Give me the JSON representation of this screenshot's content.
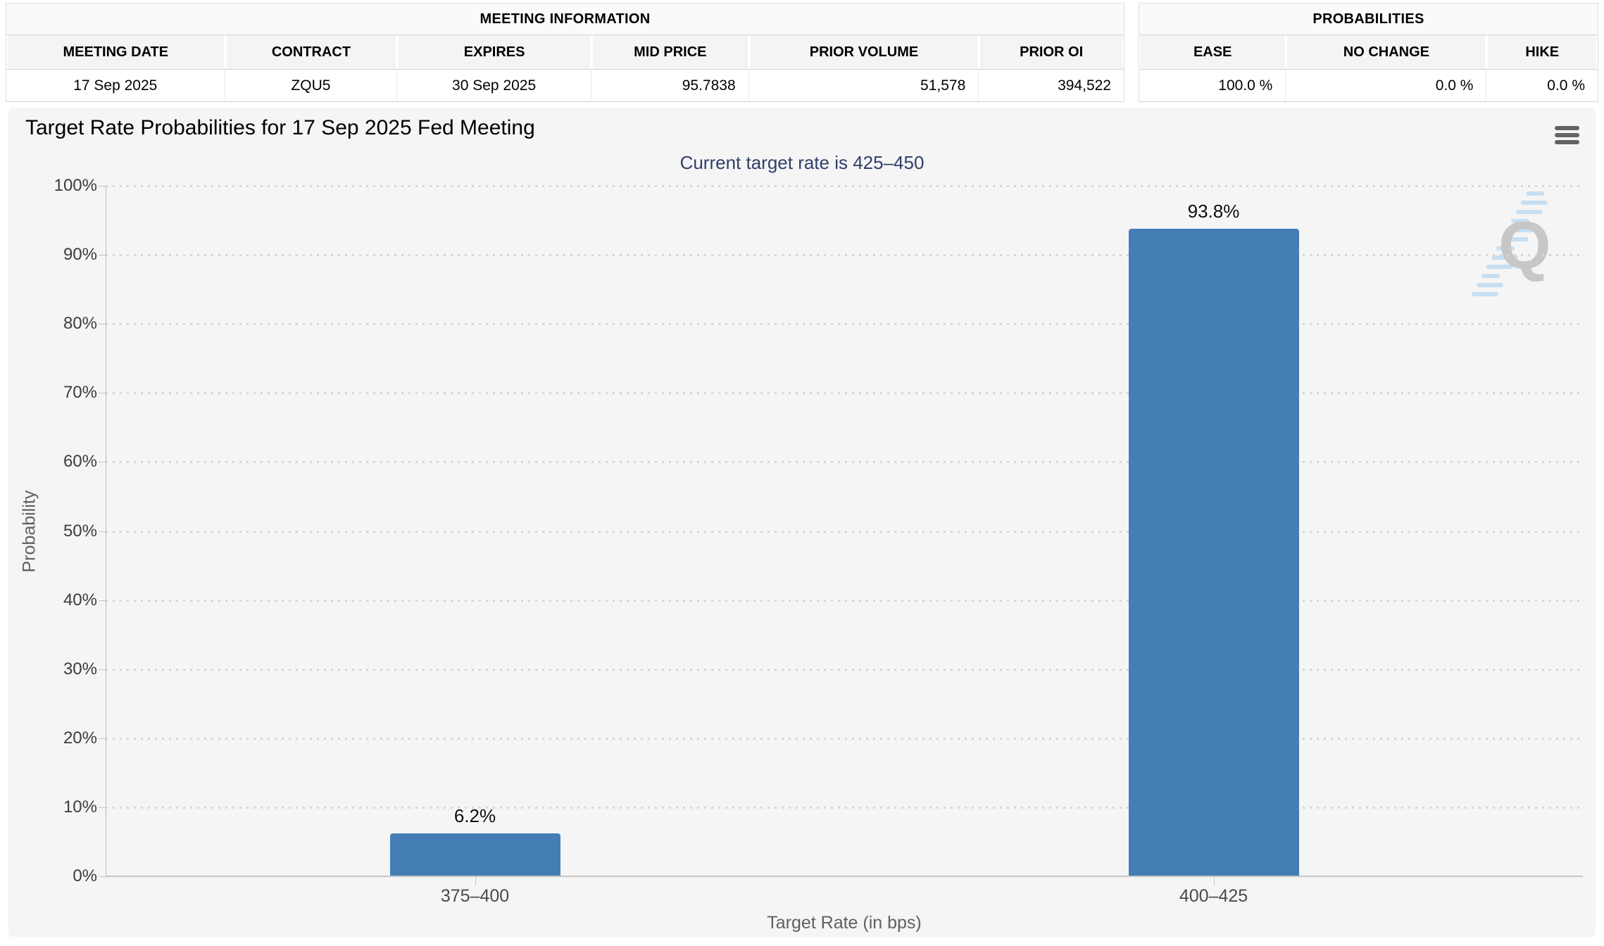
{
  "meeting_info": {
    "title": "MEETING INFORMATION",
    "columns": [
      "MEETING DATE",
      "CONTRACT",
      "EXPIRES",
      "MID PRICE",
      "PRIOR VOLUME",
      "PRIOR OI"
    ],
    "row": [
      "17 Sep 2025",
      "ZQU5",
      "30 Sep 2025",
      "95.7838",
      "51,578",
      "394,522"
    ]
  },
  "probabilities": {
    "title": "PROBABILITIES",
    "columns": [
      "EASE",
      "NO CHANGE",
      "HIKE"
    ],
    "row": [
      "100.0 %",
      "0.0 %",
      "0.0 %"
    ]
  },
  "chart_data": {
    "type": "bar",
    "title": "Target Rate Probabilities for 17 Sep 2025 Fed Meeting",
    "subtitle": "Current target rate is 425–450",
    "categories": [
      "375–400",
      "400–425"
    ],
    "values": [
      6.2,
      93.8
    ],
    "value_labels": [
      "6.2%",
      "93.8%"
    ],
    "xlabel": "Target Rate (in bps)",
    "ylabel": "Probability",
    "ylim": [
      0,
      100
    ],
    "ytick_step": 10,
    "ytick_labels": [
      "0%",
      "10%",
      "20%",
      "30%",
      "40%",
      "50%",
      "60%",
      "70%",
      "80%",
      "90%",
      "100%"
    ],
    "grid": "dotted-horizontal",
    "legend": "none",
    "bar_color": "#447eb4",
    "subtitle_color": "#303f69",
    "menu_icon": "hamburger-menu-icon",
    "watermark_letter": "Q"
  }
}
